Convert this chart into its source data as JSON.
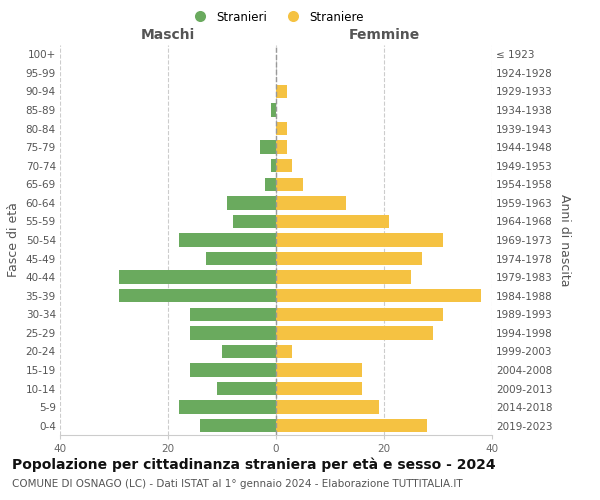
{
  "age_groups": [
    "0-4",
    "5-9",
    "10-14",
    "15-19",
    "20-24",
    "25-29",
    "30-34",
    "35-39",
    "40-44",
    "45-49",
    "50-54",
    "55-59",
    "60-64",
    "65-69",
    "70-74",
    "75-79",
    "80-84",
    "85-89",
    "90-94",
    "95-99",
    "100+"
  ],
  "birth_years": [
    "2019-2023",
    "2014-2018",
    "2009-2013",
    "2004-2008",
    "1999-2003",
    "1994-1998",
    "1989-1993",
    "1984-1988",
    "1979-1983",
    "1974-1978",
    "1969-1973",
    "1964-1968",
    "1959-1963",
    "1954-1958",
    "1949-1953",
    "1944-1948",
    "1939-1943",
    "1934-1938",
    "1929-1933",
    "1924-1928",
    "≤ 1923"
  ],
  "males": [
    14,
    18,
    11,
    16,
    10,
    16,
    16,
    29,
    29,
    13,
    18,
    8,
    9,
    2,
    1,
    3,
    0,
    1,
    0,
    0,
    0
  ],
  "females": [
    28,
    19,
    16,
    16,
    3,
    29,
    31,
    38,
    25,
    27,
    31,
    21,
    13,
    5,
    3,
    2,
    2,
    0,
    2,
    0,
    0
  ],
  "male_color": "#6aaa5e",
  "female_color": "#f5c242",
  "center_line_color": "#999999",
  "grid_color": "#cccccc",
  "background_color": "#ffffff",
  "title": "Popolazione per cittadinanza straniera per età e sesso - 2024",
  "subtitle": "COMUNE DI OSNAGO (LC) - Dati ISTAT al 1° gennaio 2024 - Elaborazione TUTTITALIA.IT",
  "ylabel_left": "Fasce di età",
  "ylabel_right": "Anni di nascita",
  "legend_male": "Stranieri",
  "legend_female": "Straniere",
  "xlim": 40,
  "title_fontsize": 10,
  "subtitle_fontsize": 7.5,
  "tick_fontsize": 7.5,
  "label_fontsize": 9,
  "maschi_label": "Maschi",
  "femmine_label": "Femmine"
}
